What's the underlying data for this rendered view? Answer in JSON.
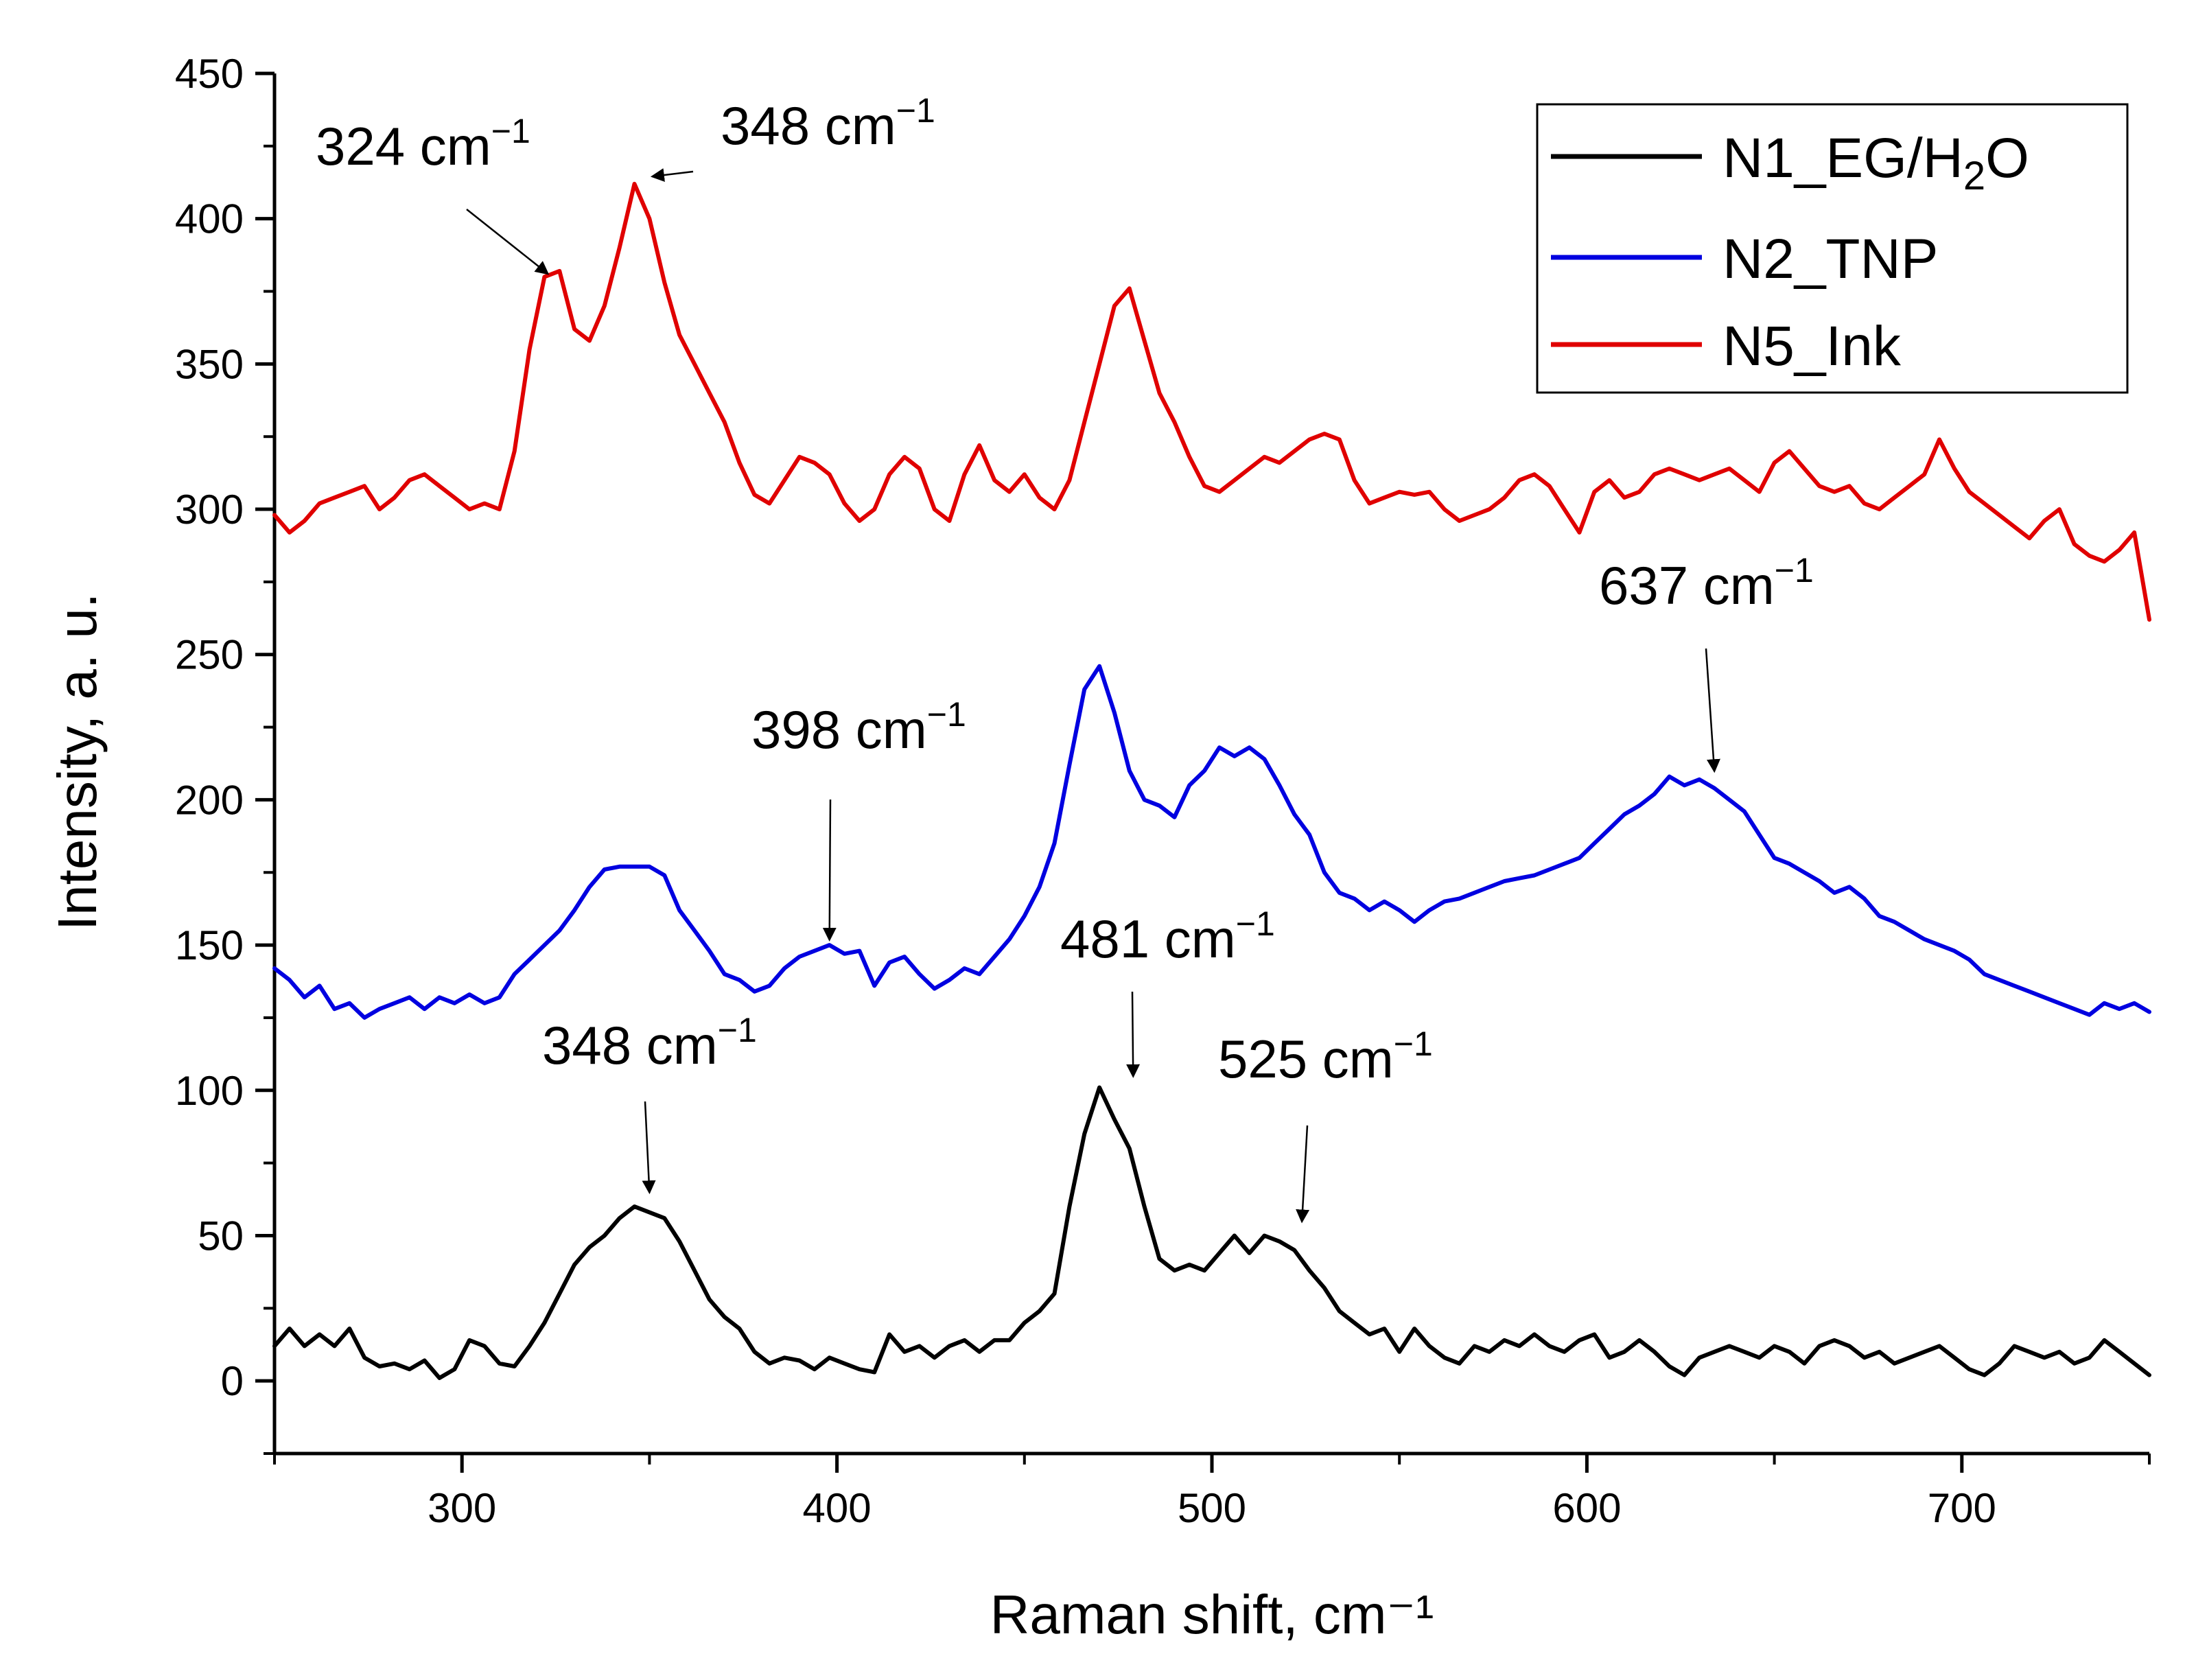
{
  "chart_data": {
    "type": "line",
    "title": "",
    "xlabel": "Raman shift, cm⁻¹",
    "ylabel": "Intensity, a. u.",
    "xlim": [
      250,
      750
    ],
    "ylim": [
      -25,
      450
    ],
    "xticks": [
      300,
      400,
      500,
      600,
      700
    ],
    "yticks": [
      0,
      50,
      100,
      150,
      200,
      250,
      300,
      350,
      400,
      450
    ],
    "legend_position": "top-right",
    "legend": [
      {
        "name": "N1_EG/H2O",
        "prefix": "N1_EG/H",
        "sub": "2",
        "suffix": "O",
        "color": "#000000"
      },
      {
        "name": "N2_TNP",
        "prefix": "N2_TNP",
        "sub": "",
        "suffix": "",
        "color": "#0000e0"
      },
      {
        "name": "N5_Ink",
        "prefix": "N5_Ink",
        "sub": "",
        "suffix": "",
        "color": "#e00000"
      }
    ],
    "series": [
      {
        "name": "N1_EG/H2O",
        "color": "#000000",
        "x": [
          250,
          254,
          258,
          262,
          266,
          270,
          274,
          278,
          282,
          286,
          290,
          294,
          298,
          302,
          306,
          310,
          314,
          318,
          322,
          326,
          330,
          334,
          338,
          342,
          346,
          350,
          354,
          358,
          362,
          366,
          370,
          374,
          378,
          382,
          386,
          390,
          394,
          398,
          402,
          406,
          410,
          414,
          418,
          422,
          426,
          430,
          434,
          438,
          442,
          446,
          450,
          454,
          458,
          462,
          466,
          470,
          474,
          478,
          482,
          486,
          490,
          494,
          498,
          502,
          506,
          510,
          514,
          518,
          522,
          526,
          530,
          534,
          538,
          542,
          546,
          550,
          554,
          558,
          562,
          566,
          570,
          574,
          578,
          582,
          586,
          590,
          594,
          598,
          602,
          606,
          610,
          614,
          618,
          622,
          626,
          630,
          634,
          638,
          642,
          646,
          650,
          654,
          658,
          662,
          666,
          670,
          674,
          678,
          682,
          686,
          690,
          694,
          698,
          702,
          706,
          710,
          714,
          718,
          722,
          726,
          730,
          734,
          738,
          742,
          746,
          750
        ],
        "values": [
          12,
          18,
          12,
          16,
          12,
          18,
          8,
          5,
          6,
          4,
          7,
          1,
          4,
          14,
          12,
          6,
          5,
          12,
          20,
          30,
          40,
          46,
          50,
          56,
          60,
          58,
          56,
          48,
          38,
          28,
          22,
          18,
          10,
          6,
          8,
          7,
          4,
          8,
          6,
          4,
          3,
          16,
          10,
          12,
          8,
          12,
          14,
          10,
          14,
          14,
          20,
          24,
          30,
          60,
          85,
          101,
          90,
          80,
          60,
          42,
          38,
          40,
          38,
          44,
          50,
          44,
          50,
          48,
          45,
          38,
          32,
          24,
          20,
          16,
          18,
          10,
          18,
          12,
          8,
          6,
          12,
          10,
          14,
          12,
          16,
          12,
          10,
          14,
          16,
          8,
          10,
          14,
          10,
          5,
          2,
          8,
          10,
          12,
          10,
          8,
          12,
          10,
          6,
          12,
          14,
          12,
          8,
          10,
          6,
          8,
          10,
          12,
          8,
          4,
          2,
          6,
          12,
          10,
          8,
          10,
          6,
          8,
          14,
          10,
          6,
          2
        ]
      },
      {
        "name": "N2_TNP",
        "color": "#0000e0",
        "x": [
          250,
          254,
          258,
          262,
          266,
          270,
          274,
          278,
          282,
          286,
          290,
          294,
          298,
          302,
          306,
          310,
          314,
          318,
          322,
          326,
          330,
          334,
          338,
          342,
          346,
          350,
          354,
          358,
          362,
          366,
          370,
          374,
          378,
          382,
          386,
          390,
          394,
          398,
          402,
          406,
          410,
          414,
          418,
          422,
          426,
          430,
          434,
          438,
          442,
          446,
          450,
          454,
          458,
          462,
          466,
          470,
          474,
          478,
          482,
          486,
          490,
          494,
          498,
          502,
          506,
          510,
          514,
          518,
          522,
          526,
          530,
          534,
          538,
          542,
          546,
          550,
          554,
          558,
          562,
          566,
          570,
          574,
          578,
          582,
          586,
          590,
          594,
          598,
          602,
          606,
          610,
          614,
          618,
          622,
          626,
          630,
          634,
          638,
          642,
          646,
          650,
          654,
          658,
          662,
          666,
          670,
          674,
          678,
          682,
          686,
          690,
          694,
          698,
          702,
          706,
          710,
          714,
          718,
          722,
          726,
          730,
          734,
          738,
          742,
          746,
          750
        ],
        "values": [
          142,
          138,
          132,
          136,
          128,
          130,
          125,
          128,
          130,
          132,
          128,
          132,
          130,
          133,
          130,
          132,
          140,
          145,
          150,
          155,
          162,
          170,
          176,
          177,
          177,
          177,
          174,
          162,
          155,
          148,
          140,
          138,
          134,
          136,
          142,
          146,
          148,
          150,
          147,
          148,
          136,
          144,
          146,
          140,
          135,
          138,
          142,
          140,
          146,
          152,
          160,
          170,
          185,
          212,
          238,
          246,
          230,
          210,
          200,
          198,
          194,
          205,
          210,
          218,
          215,
          218,
          214,
          205,
          195,
          188,
          175,
          168,
          166,
          162,
          165,
          162,
          158,
          162,
          165,
          166,
          168,
          170,
          172,
          173,
          174,
          176,
          178,
          180,
          185,
          190,
          195,
          198,
          202,
          208,
          205,
          207,
          204,
          200,
          196,
          188,
          180,
          178,
          175,
          172,
          168,
          170,
          166,
          160,
          158,
          155,
          152,
          150,
          148,
          145,
          140,
          138,
          136,
          134,
          132,
          130,
          128,
          126,
          130,
          128,
          130,
          127
        ]
      },
      {
        "name": "N5_Ink",
        "color": "#e00000",
        "x": [
          250,
          254,
          258,
          262,
          266,
          270,
          274,
          278,
          282,
          286,
          290,
          294,
          298,
          302,
          306,
          310,
          314,
          318,
          322,
          326,
          330,
          334,
          338,
          342,
          346,
          350,
          354,
          358,
          362,
          366,
          370,
          374,
          378,
          382,
          386,
          390,
          394,
          398,
          402,
          406,
          410,
          414,
          418,
          422,
          426,
          430,
          434,
          438,
          442,
          446,
          450,
          454,
          458,
          462,
          466,
          470,
          474,
          478,
          482,
          486,
          490,
          494,
          498,
          502,
          506,
          510,
          514,
          518,
          522,
          526,
          530,
          534,
          538,
          542,
          546,
          550,
          554,
          558,
          562,
          566,
          570,
          574,
          578,
          582,
          586,
          590,
          594,
          598,
          602,
          606,
          610,
          614,
          618,
          622,
          626,
          630,
          634,
          638,
          642,
          646,
          650,
          654,
          658,
          662,
          666,
          670,
          674,
          678,
          682,
          686,
          690,
          694,
          698,
          702,
          706,
          710,
          714,
          718,
          722,
          726,
          730,
          734,
          738,
          742,
          746,
          750
        ],
        "values": [
          298,
          292,
          296,
          302,
          304,
          306,
          308,
          300,
          304,
          310,
          312,
          308,
          304,
          300,
          302,
          300,
          320,
          355,
          380,
          382,
          362,
          358,
          370,
          390,
          412,
          400,
          378,
          360,
          350,
          340,
          330,
          316,
          305,
          302,
          310,
          318,
          316,
          312,
          302,
          296,
          300,
          312,
          318,
          314,
          300,
          296,
          312,
          322,
          310,
          306,
          312,
          304,
          300,
          310,
          330,
          350,
          370,
          376,
          358,
          340,
          330,
          318,
          308,
          306,
          310,
          314,
          318,
          316,
          320,
          324,
          326,
          324,
          310,
          302,
          304,
          306,
          305,
          306,
          300,
          296,
          298,
          300,
          304,
          310,
          312,
          308,
          300,
          292,
          306,
          310,
          304,
          306,
          312,
          314,
          312,
          310,
          312,
          314,
          310,
          306,
          316,
          320,
          314,
          308,
          306,
          308,
          302,
          300,
          304,
          308,
          312,
          324,
          314,
          306,
          302,
          298,
          294,
          290,
          296,
          300,
          288,
          284,
          282,
          286,
          292,
          262
        ]
      }
    ],
    "annotations": [
      {
        "label": "324 cm",
        "sup": "−1",
        "target": [
          324,
          382
        ]
      },
      {
        "label": "348 cm",
        "sup": "−1",
        "target": [
          350,
          415
        ]
      },
      {
        "label": "637 cm",
        "sup": "−1",
        "target": [
          634,
          207
        ]
      },
      {
        "label": "398 cm",
        "sup": "−1",
        "target": [
          398,
          149
        ]
      },
      {
        "label": "481 cm",
        "sup": "−1",
        "target": [
          479,
          102
        ]
      },
      {
        "label": "348 cm",
        "sup": "−1",
        "target": [
          350,
          62
        ]
      },
      {
        "label": "525 cm",
        "sup": "−1",
        "target": [
          524,
          52
        ]
      }
    ]
  }
}
